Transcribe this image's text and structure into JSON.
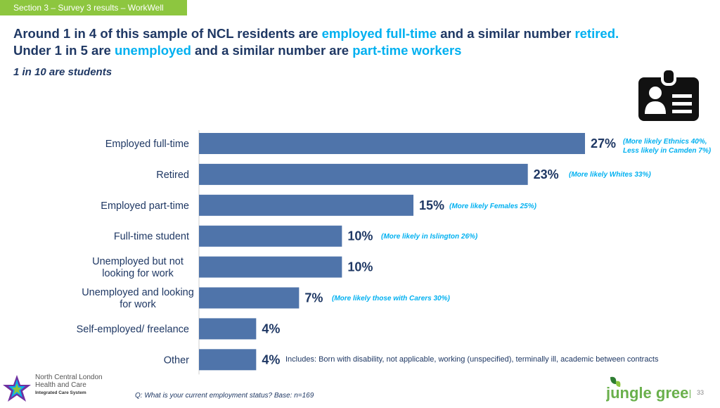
{
  "header": {
    "section_tab": "Section 3 – Survey 3 results – WorkWell",
    "title_line1_a": "Around 1 in 4 of this sample of NCL residents are ",
    "title_line1_b": "employed full-time",
    "title_line1_c": " and a similar number ",
    "title_line1_d": "retired.",
    "title_line2_a": "Under 1 in 5 are ",
    "title_line2_b": "unemployed",
    "title_line2_c": " and a similar number are ",
    "title_line2_d": "part-time workers",
    "subtitle": "1 in 10 are students"
  },
  "icons": {
    "badge": "id-badge-icon"
  },
  "colors": {
    "bar": "#4f74aa",
    "accent": "#00b0f0",
    "navy": "#1f3864",
    "purple": "#7030a0",
    "section_tab": "#8dc63f"
  },
  "chart_data": {
    "type": "bar",
    "orientation": "horizontal",
    "categories": [
      "Employed full-time",
      "Retired",
      "Employed part-time",
      "Full-time student",
      "Unemployed but not looking for work",
      "Unemployed and looking for work",
      "Self-employed/ freelance",
      "Other"
    ],
    "category_lines": [
      [
        "Employed full-time"
      ],
      [
        "Retired"
      ],
      [
        "Employed part-time"
      ],
      [
        "Full-time student"
      ],
      [
        "Unemployed but not",
        "looking for work"
      ],
      [
        "Unemployed and looking",
        "for work"
      ],
      [
        "Self-employed/ freelance"
      ],
      [
        "Other"
      ]
    ],
    "values": [
      27,
      23,
      15,
      10,
      10,
      7,
      4,
      4
    ],
    "value_labels": [
      "27%",
      "23%",
      "15%",
      "10%",
      "10%",
      "7%",
      "4%",
      "4%"
    ],
    "xlim": [
      0,
      27
    ],
    "grid": false
  },
  "notes": {
    "ft_line1": "(More likely Ethnics 40%,",
    "ft_line2": "Less likely in Camden 7%)",
    "retired": "(More likely Whites 33%)",
    "parttime": "(More likely Females 25%)",
    "student": "(More likely in Islington 26%)",
    "unemployed_looking": "(More likely those with Carers 30%)",
    "other": "Includes: Born with disability, not applicable, working (unspecified), terminally ill, academic between contracts"
  },
  "footer": {
    "question": "Q: What is your current employment status? Base: n=169",
    "page_number": "33",
    "ncl_line1": "North Central London",
    "ncl_line2": "Health and Care",
    "ncl_line3": "Integrated Care System",
    "jungle_green": "jungle green"
  }
}
